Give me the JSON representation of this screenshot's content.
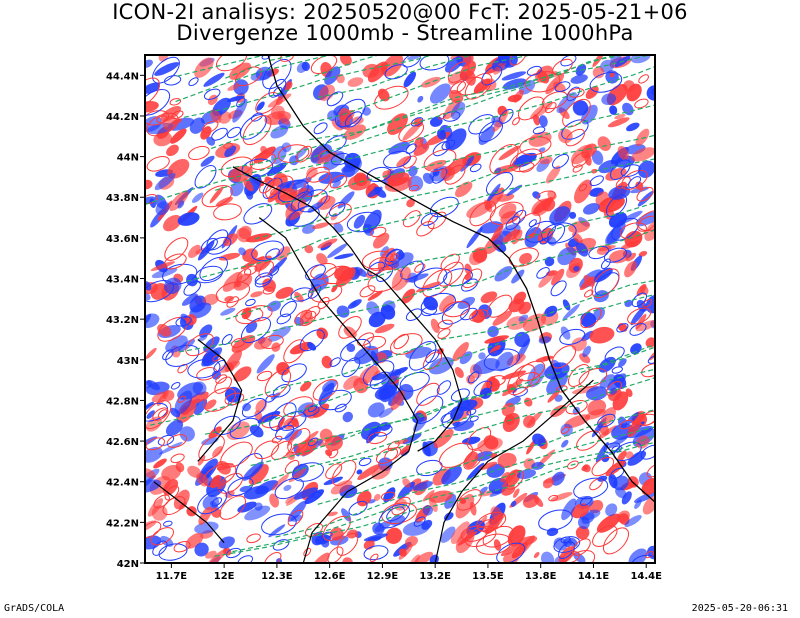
{
  "title_line1": "ICON-2I analisys: 20250520@00 FcT: 2025-05-21+06",
  "title_line2": "Divergenze 1000mb - Streamline 1000hPa",
  "footer_left": "GrADS/COLA",
  "footer_right": "2025-05-20-06:31",
  "colors": {
    "positive_divergence": "#ff3a3a",
    "negative_divergence": "#1f3cff",
    "streamline": "#22aa66",
    "boundary": "#000000"
  },
  "chart_data": {
    "type": "heatmap",
    "title": "Divergenze 1000mb - Streamline 1000hPa",
    "xlabel": "",
    "ylabel": "",
    "xlim": [
      11.55,
      14.45
    ],
    "ylim": [
      42.0,
      44.5
    ],
    "x_ticks": [
      {
        "value": 11.7,
        "label": "11.7E"
      },
      {
        "value": 12.0,
        "label": "12E"
      },
      {
        "value": 12.3,
        "label": "12.3E"
      },
      {
        "value": 12.6,
        "label": "12.6E"
      },
      {
        "value": 12.9,
        "label": "12.9E"
      },
      {
        "value": 13.2,
        "label": "13.2E"
      },
      {
        "value": 13.5,
        "label": "13.5E"
      },
      {
        "value": 13.8,
        "label": "13.8E"
      },
      {
        "value": 14.1,
        "label": "14.1E"
      },
      {
        "value": 14.4,
        "label": "14.4E"
      }
    ],
    "y_ticks": [
      {
        "value": 42.0,
        "label": "42N"
      },
      {
        "value": 42.2,
        "label": "42.2N"
      },
      {
        "value": 42.4,
        "label": "42.4N"
      },
      {
        "value": 42.6,
        "label": "42.6N"
      },
      {
        "value": 42.8,
        "label": "42.8N"
      },
      {
        "value": 43.0,
        "label": "43N"
      },
      {
        "value": 43.2,
        "label": "43.2N"
      },
      {
        "value": 43.4,
        "label": "43.4N"
      },
      {
        "value": 43.6,
        "label": "43.6N"
      },
      {
        "value": 43.8,
        "label": "43.8N"
      },
      {
        "value": 44.0,
        "label": "44N"
      },
      {
        "value": 44.2,
        "label": "44.2N"
      },
      {
        "value": 44.4,
        "label": "44.4N"
      }
    ],
    "coastline": [
      [
        12.25,
        44.5
      ],
      [
        12.3,
        44.35
      ],
      [
        12.45,
        44.15
      ],
      [
        12.6,
        44.02
      ],
      [
        12.85,
        43.9
      ],
      [
        13.05,
        43.8
      ],
      [
        13.3,
        43.68
      ],
      [
        13.5,
        43.6
      ],
      [
        13.62,
        43.5
      ],
      [
        13.72,
        43.35
      ],
      [
        13.78,
        43.2
      ],
      [
        13.85,
        43.0
      ],
      [
        13.92,
        42.85
      ],
      [
        14.05,
        42.7
      ],
      [
        14.2,
        42.55
      ],
      [
        14.32,
        42.4
      ],
      [
        14.45,
        42.3
      ]
    ],
    "region_boundaries": [
      [
        [
          12.05,
          43.95
        ],
        [
          12.2,
          43.88
        ],
        [
          12.35,
          43.82
        ],
        [
          12.5,
          43.75
        ],
        [
          12.62,
          43.65
        ],
        [
          12.72,
          43.55
        ],
        [
          12.8,
          43.45
        ],
        [
          12.9,
          43.4
        ],
        [
          13.0,
          43.3
        ],
        [
          13.1,
          43.2
        ],
        [
          13.2,
          43.1
        ],
        [
          13.3,
          42.95
        ],
        [
          13.35,
          42.8
        ],
        [
          13.3,
          42.7
        ],
        [
          13.2,
          42.6
        ],
        [
          13.1,
          42.55
        ]
      ],
      [
        [
          12.45,
          42.0
        ],
        [
          12.5,
          42.15
        ],
        [
          12.7,
          42.35
        ],
        [
          12.9,
          42.45
        ],
        [
          13.05,
          42.55
        ],
        [
          13.1,
          42.7
        ],
        [
          13.0,
          42.85
        ],
        [
          12.85,
          43.0
        ],
        [
          12.7,
          43.15
        ],
        [
          12.55,
          43.3
        ],
        [
          12.45,
          43.45
        ],
        [
          12.35,
          43.6
        ],
        [
          12.2,
          43.7
        ]
      ],
      [
        [
          13.2,
          42.0
        ],
        [
          13.25,
          42.2
        ],
        [
          13.35,
          42.35
        ],
        [
          13.5,
          42.5
        ],
        [
          13.7,
          42.6
        ],
        [
          13.9,
          42.75
        ],
        [
          14.1,
          42.9
        ]
      ],
      [
        [
          11.6,
          42.4
        ],
        [
          11.75,
          42.3
        ],
        [
          11.9,
          42.2
        ],
        [
          12.0,
          42.1
        ]
      ],
      [
        [
          11.85,
          43.1
        ],
        [
          12.0,
          43.0
        ],
        [
          12.1,
          42.85
        ],
        [
          12.05,
          42.7
        ],
        [
          11.95,
          42.6
        ],
        [
          11.85,
          42.5
        ]
      ]
    ]
  }
}
